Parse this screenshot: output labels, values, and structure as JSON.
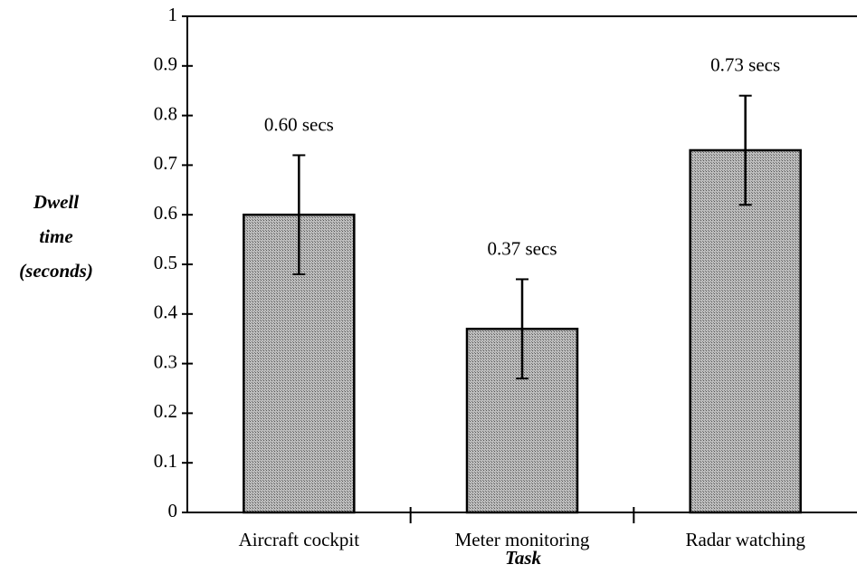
{
  "chart_data": {
    "type": "bar",
    "categories": [
      "Aircraft cockpit",
      "Meter monitoring",
      "Radar watching"
    ],
    "values": [
      0.6,
      0.37,
      0.73
    ],
    "errors": [
      0.12,
      0.1,
      0.11
    ],
    "value_labels": [
      "0.60 secs",
      "0.37 secs",
      "0.73 secs"
    ],
    "ylabel": [
      "Dwell",
      "time",
      "(seconds)"
    ],
    "xlabel": "Task",
    "color": "#9a9a9a",
    "ylim": [
      0,
      1
    ],
    "yticks": [
      0,
      0.1,
      0.2,
      0.3,
      0.4,
      0.5,
      0.6,
      0.7,
      0.8,
      0.9,
      1
    ],
    "grid": false
  }
}
